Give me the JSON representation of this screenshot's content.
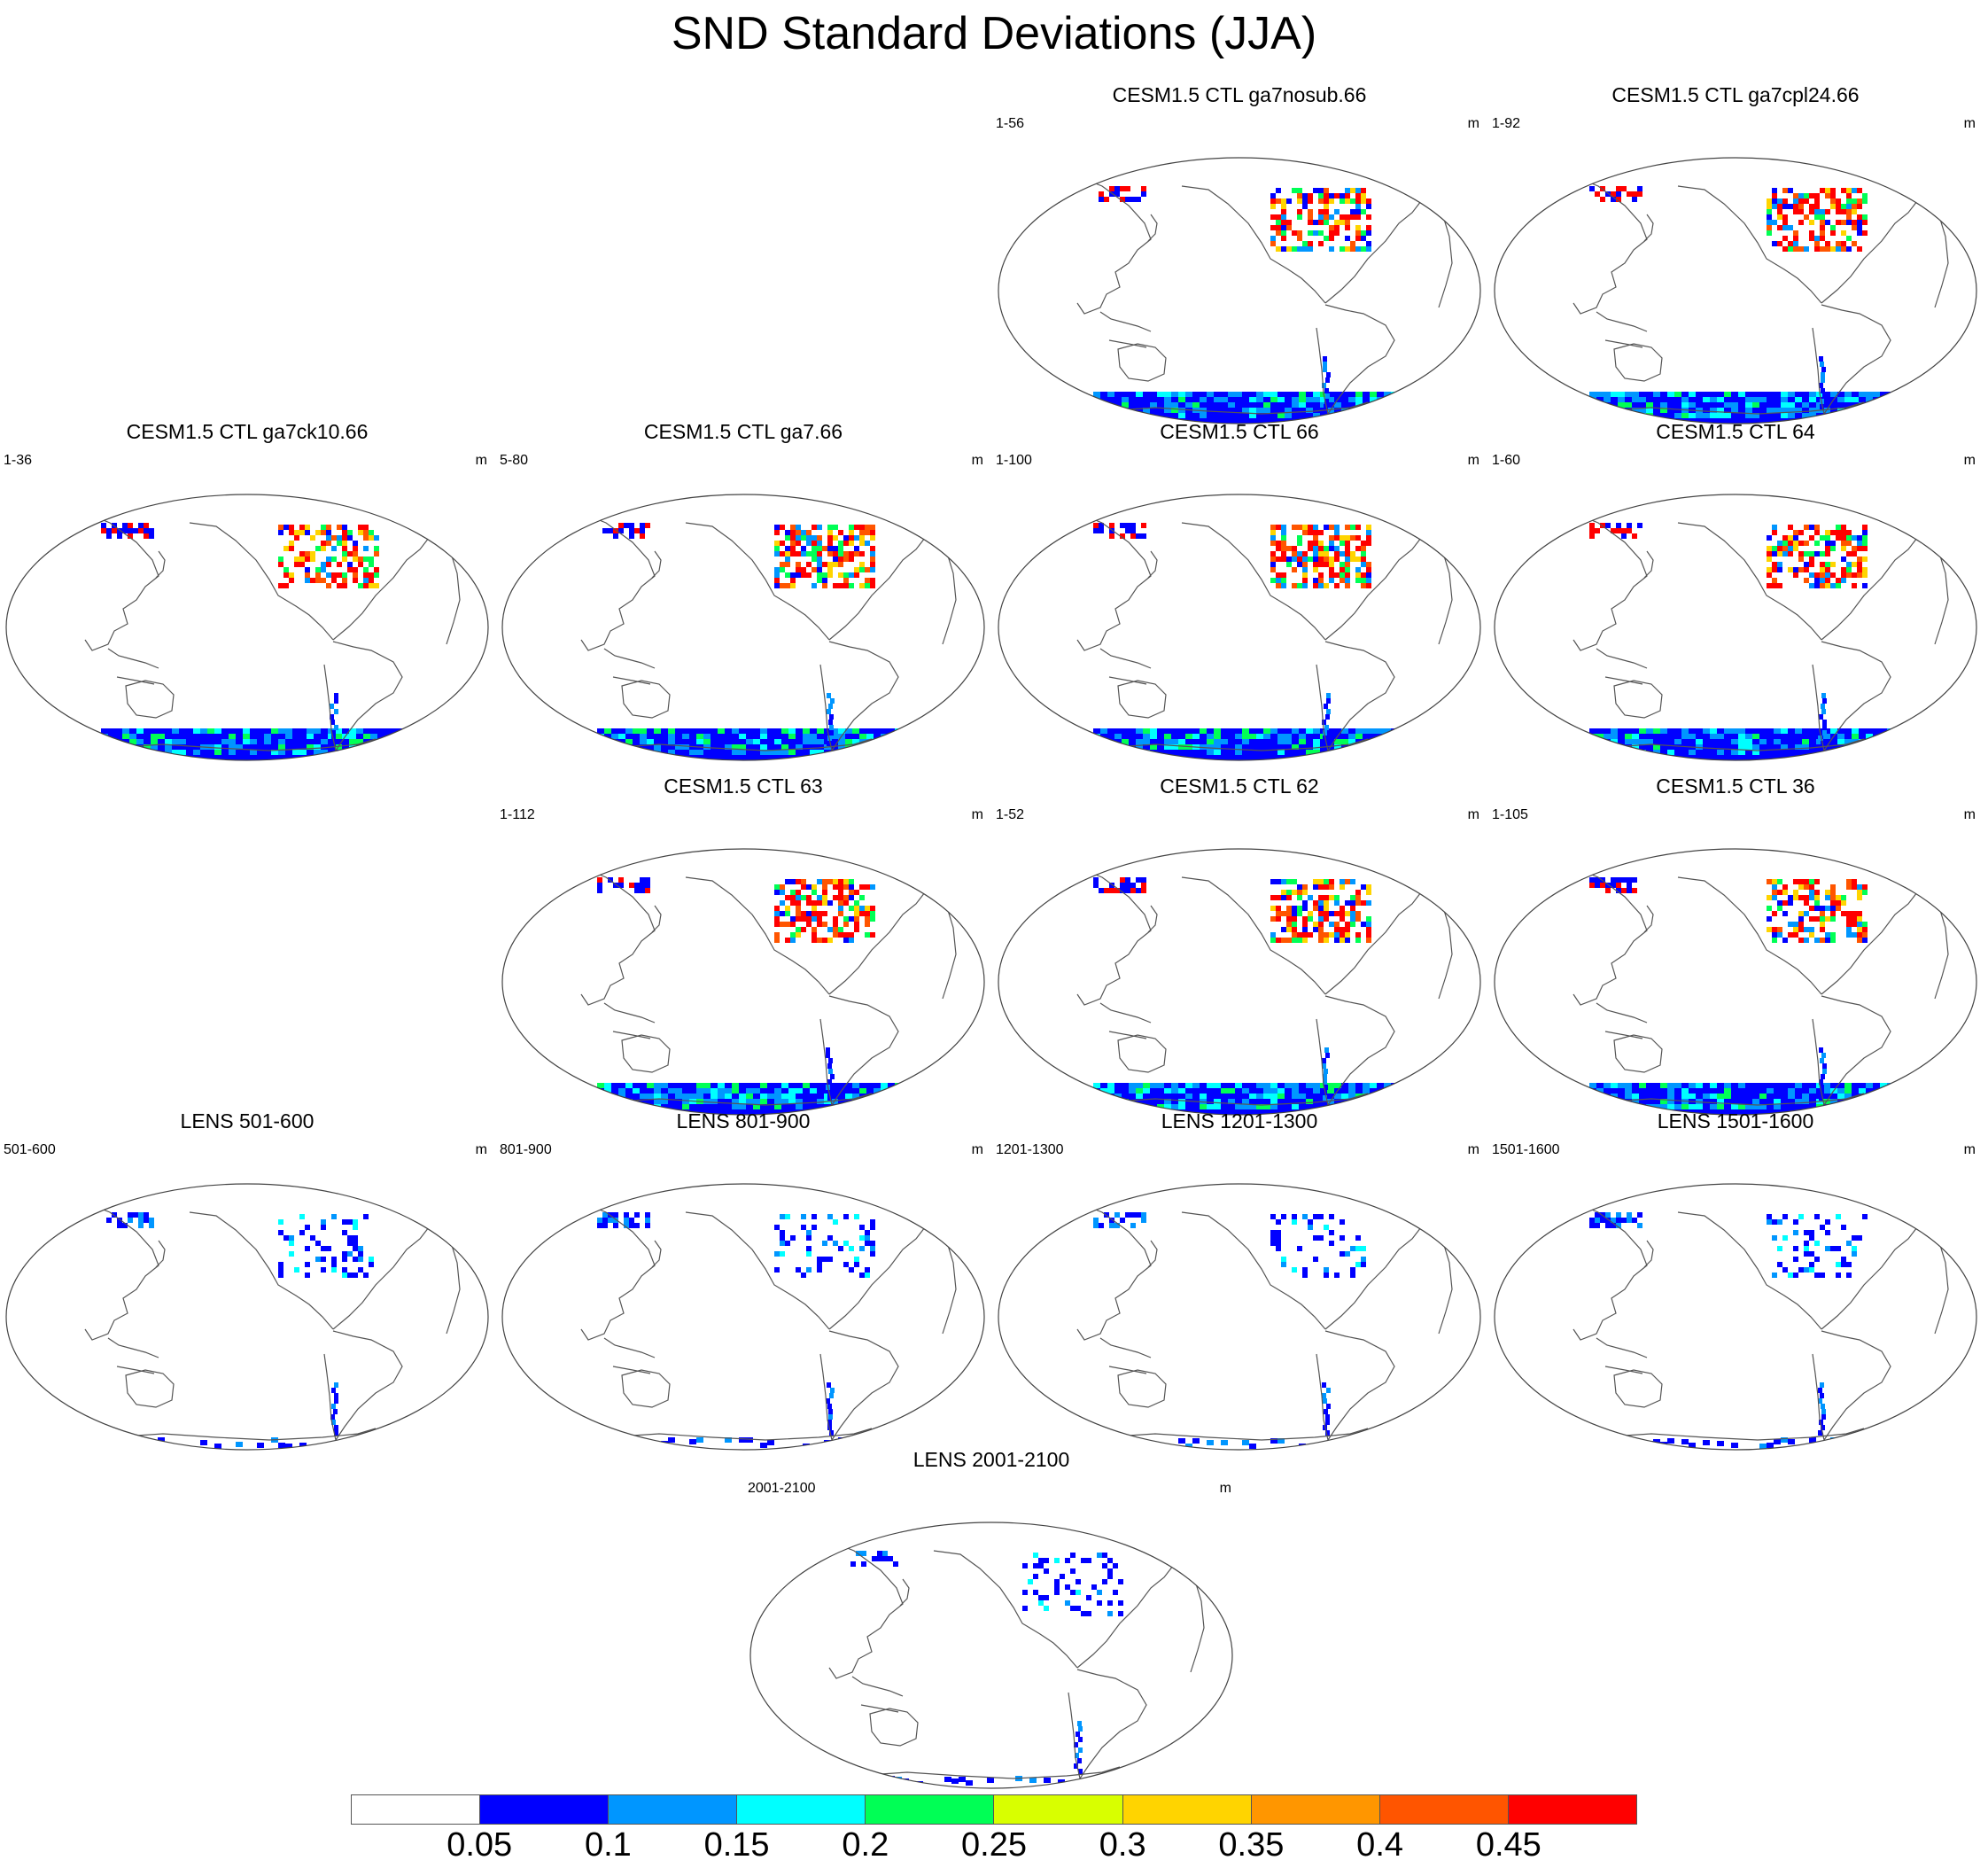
{
  "title": "SND Standard Deviations (JJA)",
  "units_label": "m",
  "panels": [
    {
      "title": "CESM1.5 CTL ga7nosub.66",
      "years": "1-56",
      "intensity": 0.85
    },
    {
      "title": "CESM1.5 CTL ga7cpl24.66",
      "years": "1-92",
      "intensity": 0.9
    },
    {
      "title": "CESM1.5 CTL ga7ck10.66",
      "years": "1-36",
      "intensity": 0.8
    },
    {
      "title": "CESM1.5 CTL ga7.66",
      "years": "5-80",
      "intensity": 0.95
    },
    {
      "title": "CESM1.5 CTL 66",
      "years": "1-100",
      "intensity": 1.0
    },
    {
      "title": "CESM1.5 CTL 64",
      "years": "1-60",
      "intensity": 0.85
    },
    {
      "title": "CESM1.5 CTL 63",
      "years": "1-112",
      "intensity": 0.85
    },
    {
      "title": "CESM1.5 CTL 62",
      "years": "1-52",
      "intensity": 0.85
    },
    {
      "title": "CESM1.5 CTL 36",
      "years": "1-105",
      "intensity": 0.75
    },
    {
      "title": "LENS 501-600",
      "years": "501-600",
      "intensity": 0.25
    },
    {
      "title": "LENS 801-900",
      "years": "801-900",
      "intensity": 0.25
    },
    {
      "title": "LENS 1201-1300",
      "years": "1201-1300",
      "intensity": 0.25
    },
    {
      "title": "LENS 1501-1600",
      "years": "1501-1600",
      "intensity": 0.25
    },
    {
      "title": "LENS 2001-2100",
      "years": "2001-2100",
      "intensity": 0.25
    }
  ],
  "colorbar": {
    "labels": [
      "0.05",
      "0.1",
      "0.15",
      "0.2",
      "0.25",
      "0.3",
      "0.35",
      "0.4",
      "0.45"
    ],
    "colors": [
      "#ffffff",
      "#0000ff",
      "#0096ff",
      "#00ffff",
      "#00ff55",
      "#d8ff00",
      "#ffd400",
      "#ff9600",
      "#ff5500",
      "#ff0000"
    ]
  }
}
